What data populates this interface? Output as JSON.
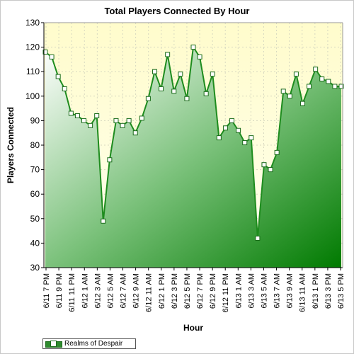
{
  "chart_data": {
    "type": "area",
    "title": "Total Players Connected By Hour",
    "xlabel": "Hour",
    "ylabel": "Players Connected",
    "ylim": [
      30,
      130
    ],
    "yticks": [
      30,
      40,
      50,
      60,
      70,
      80,
      90,
      100,
      110,
      120,
      130
    ],
    "grid": true,
    "legend_position": "bottom-left",
    "x_tick_labels": [
      "6/11 7 PM",
      "6/11 9 PM",
      "6/11 11 PM",
      "6/12 1 AM",
      "6/12 3 AM",
      "6/12 5 AM",
      "6/12 7 AM",
      "6/12 9 AM",
      "6/12 11 AM",
      "6/12 1 PM",
      "6/12 3 PM",
      "6/12 5 PM",
      "6/12 7 PM",
      "6/12 9 PM",
      "6/12 11 PM",
      "6/13 1 AM",
      "6/13 3 AM",
      "6/13 5 AM",
      "6/13 7 AM",
      "6/13 9 AM",
      "6/13 11 AM",
      "6/13 1 PM",
      "6/13 3 PM",
      "6/13 5 PM"
    ],
    "series": [
      {
        "name": "Realms of Despair",
        "color": "#1e8c1e",
        "values": [
          118,
          116,
          108,
          103,
          93,
          92,
          90,
          88,
          92,
          49,
          74,
          90,
          88,
          90,
          85,
          91,
          99,
          110,
          103,
          117,
          102,
          109,
          99,
          120,
          116,
          101,
          109,
          83,
          87,
          90,
          86,
          81,
          83,
          42,
          72,
          70,
          77,
          102,
          100,
          109,
          97,
          104,
          111,
          107,
          106,
          104,
          104
        ]
      }
    ]
  }
}
